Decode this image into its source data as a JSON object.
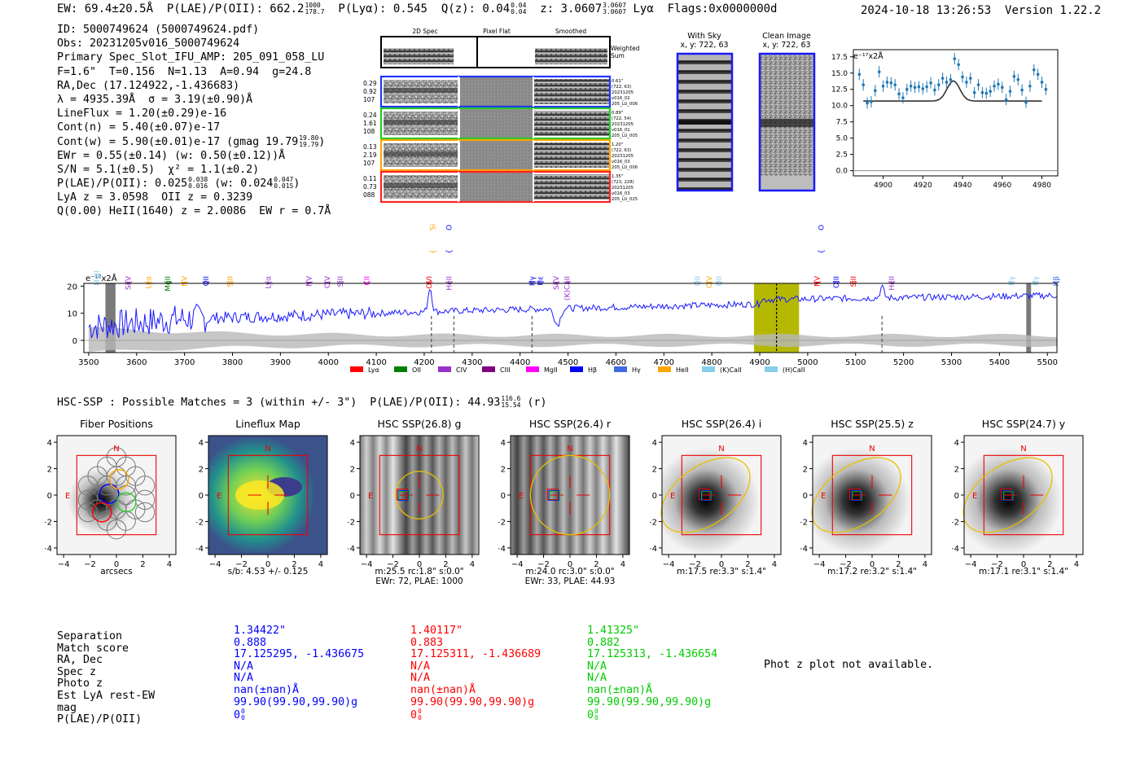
{
  "header": {
    "ew": "EW: 69.4±20.5Å",
    "plae_label": "P(LAE)/P(OII): 662.2",
    "plae_hi": "1000",
    "plae_lo": "178.7",
    "plya": "P(Lyα): 0.545",
    "qz_label": "Q(z): 0.04",
    "qz_hi": "0.04",
    "qz_lo": "0.04",
    "z_label": "z: 3.0607",
    "z_hi": "3.0607",
    "z_lo": "3.0607",
    "line": "Lyα",
    "flags": "Flags:0x0000000d",
    "datetime": "2024-10-18 13:26:53",
    "version": "Version 1.22.2"
  },
  "info": {
    "id": "ID: 5000749624 (5000749624.pdf)",
    "obs": "Obs: 20231205v016_5000749624",
    "primary": "Primary Spec_Slot_IFU_AMP: 205_091_058_LU",
    "fit": "F=1.6\"  T=0.156  N=1.13  A=0.94  g=24.8",
    "radec": "RA,Dec (17.124922,-1.436683)",
    "lambda": "λ = 4935.39Å  σ = 3.19(±0.90)Å",
    "lineflux": "LineFlux = 1.20(±0.29)e-16",
    "contn": "Cont(n) = 5.40(±0.07)e-17",
    "contw": "Cont(w) = 5.90(±0.01)e-17 (gmag 19.79",
    "contw_hi": "19.80",
    "contw_lo": "19.79",
    "contw_end": ")",
    "ewr": "EWr = 0.55(±0.14) (w: 0.50(±0.12))Å",
    "sn": "S/N = 5.1(±0.5)  χ² = 1.1(±0.2)",
    "plae": "P(LAE)/P(OII): 0.025",
    "plae_hi": "0.038",
    "plae_lo": "0.016",
    "plae_w": " (w: 0.024",
    "plae_w_hi": "0.047",
    "plae_w_lo": "0.015",
    "plae_end": ")",
    "lyaz": "LyA z = 3.0598  OII z = 0.3239",
    "q": "Q(0.00) HeII(1640) z = 2.0086  EW r = 0.7Å"
  },
  "cutouts": {
    "col_titles": [
      "2D Spec",
      "Pixel Flat",
      "Smoothed"
    ],
    "weighted_sum": "Weighted Sum",
    "rows": [
      {
        "left": [
          "0.29",
          "0.92",
          "107"
        ],
        "right": [
          "0.61\"",
          "(722, 63)",
          "20231205",
          "v016_02",
          "205_LU_006"
        ],
        "color": "#2233ff"
      },
      {
        "left": [
          "0.24",
          "1.61",
          "108"
        ],
        "right": [
          "0.89\"",
          "(722, 54)",
          "20231205",
          "v016_01",
          "205_LU_005"
        ],
        "color": "#22cc22"
      },
      {
        "left": [
          "0.13",
          "2.19",
          "107"
        ],
        "right": [
          "1.20\"",
          "(722, 63)",
          "20231205",
          "v016_03",
          "205_LU_006"
        ],
        "color": "#ffa500"
      },
      {
        "left": [
          "0.11",
          "0.73",
          "088"
        ],
        "right": [
          "1.35\"",
          "(723, 228)",
          "20231205",
          "v016_03",
          "205_LU_025"
        ],
        "color": "#ff2222"
      }
    ],
    "with_sky": "With Sky",
    "with_sky_xy": "x, y: 722, 63",
    "clean": "Clean Image",
    "clean_xy": "x, y: 722, 63"
  },
  "zoom_plot": {
    "unit": "e⁻¹⁷x2Å",
    "yticks": [
      "17.5",
      "15.0",
      "12.5",
      "10.0",
      "7.5",
      "5.0",
      "2.5",
      "0.0"
    ],
    "xticks": [
      "4900",
      "4920",
      "4940",
      "4960",
      "4980"
    ],
    "x": [
      4888,
      4890,
      4892,
      4894,
      4896,
      4898,
      4900,
      4902,
      4904,
      4906,
      4908,
      4910,
      4912,
      4914,
      4916,
      4918,
      4920,
      4922,
      4924,
      4926,
      4928,
      4930,
      4932,
      4934,
      4936,
      4938,
      4940,
      4942,
      4944,
      4946,
      4948,
      4950,
      4952,
      4954,
      4956,
      4958,
      4960,
      4962,
      4964,
      4966,
      4968,
      4970,
      4972,
      4974,
      4976,
      4978,
      4980,
      4982
    ],
    "y": [
      14.8,
      13.2,
      10.4,
      10.6,
      12.3,
      15.2,
      13.0,
      13.6,
      13.5,
      13.2,
      11.8,
      11.2,
      12.5,
      13.0,
      12.8,
      12.9,
      12.6,
      12.9,
      13.5,
      12.4,
      13.2,
      14.2,
      13.6,
      14.0,
      17.2,
      16.3,
      14.4,
      13.6,
      14.2,
      12.0,
      13.2,
      12.0,
      11.9,
      12.2,
      13.0,
      13.3,
      12.8,
      10.9,
      12.2,
      14.5,
      14.0,
      12.4,
      10.5,
      13.0,
      15.5,
      14.8,
      13.6,
      12.5
    ],
    "model_base": 10.7,
    "model_peak": 13.8,
    "model_center": 4935.4
  },
  "spectrum": {
    "unit": "e⁻¹⁷x2Å",
    "yticks": [
      "20",
      "10",
      "0"
    ],
    "xticks": [
      "3500",
      "3600",
      "3700",
      "3800",
      "3900",
      "4000",
      "4100",
      "4200",
      "4300",
      "4400",
      "4500",
      "4600",
      "4700",
      "4800",
      "4900",
      "5000",
      "5100",
      "5200",
      "5300",
      "5400",
      "5500"
    ],
    "lines": [
      {
        "label": "MgII",
        "color": "#87ceeb",
        "x": 3517,
        "row": 0
      },
      {
        "label": "SiIV",
        "color": "#9932cc",
        "x": 3583,
        "row": 1
      },
      {
        "label": "Lyα",
        "color": "#ffa500",
        "x": 3625,
        "row": 1
      },
      {
        "label": "MgII",
        "color": "#008000",
        "x": 3665,
        "row": 1
      },
      {
        "label": "NV",
        "color": "#ffa500",
        "x": 3700,
        "row": 1
      },
      {
        "label": "OII",
        "color": "#0000ff",
        "x": 3745,
        "row": 1
      },
      {
        "label": "SiII",
        "color": "#ffa500",
        "x": 3795,
        "row": 1
      },
      {
        "label": "Lyα",
        "color": "#9932cc",
        "x": 3875,
        "row": 1
      },
      {
        "label": "NV",
        "color": "#9932cc",
        "x": 3960,
        "row": 1
      },
      {
        "label": "CIV",
        "color": "#9932cc",
        "x": 3998,
        "row": 1
      },
      {
        "label": "SiII",
        "color": "#9932cc",
        "x": 4025,
        "row": 1
      },
      {
        "label": "CII",
        "color": "#ff00ff",
        "x": 4080,
        "row": 1
      },
      {
        "label": "SiIV",
        "color": "#ffa500",
        "x": 4218,
        "row": 2
      },
      {
        "label": "OII",
        "color": "#0000ff",
        "x": 4252,
        "row": 2
      },
      {
        "label": "OVI",
        "color": "#ff0000",
        "x": 4210,
        "row": 1
      },
      {
        "label": "HeII",
        "color": "#9932cc",
        "x": 4252,
        "row": 1
      },
      {
        "label": "Hγ",
        "color": "#0000ff",
        "x": 4425,
        "row": 1
      },
      {
        "label": "Hε",
        "color": "#0000ff",
        "x": 4442,
        "row": 1
      },
      {
        "label": "SiIV",
        "color": "#9932cc",
        "x": 4475,
        "row": 1
      },
      {
        "label": "(K)CaII",
        "color": "#9932cc",
        "x": 4498,
        "row": 1
      },
      {
        "label": "OII",
        "color": "#87ceeb",
        "x": 4770,
        "row": 1
      },
      {
        "label": "CIV",
        "color": "#ffa500",
        "x": 4795,
        "row": 1
      },
      {
        "label": "OII",
        "color": "#87ceeb",
        "x": 4815,
        "row": 1
      },
      {
        "label": "OIII",
        "color": "#0000ff",
        "x": 5028,
        "row": 2
      },
      {
        "label": "NV",
        "color": "#ff0000",
        "x": 5020,
        "row": 1
      },
      {
        "label": "OIII",
        "color": "#0000ff",
        "x": 5060,
        "row": 1
      },
      {
        "label": "SiII",
        "color": "#ff0000",
        "x": 5095,
        "row": 1
      },
      {
        "label": "HeII",
        "color": "#9932cc",
        "x": 5175,
        "row": 1
      },
      {
        "label": "Hγ",
        "color": "#87ceeb",
        "x": 5425,
        "row": 1
      },
      {
        "label": "Hγ",
        "color": "#87ceeb",
        "x": 5475,
        "row": 1
      },
      {
        "label": "Hβ",
        "color": "#4169e1",
        "x": 5518,
        "row": 1
      }
    ],
    "legend": [
      {
        "label": "Lyα",
        "color": "#ff0000"
      },
      {
        "label": "OII",
        "color": "#008000"
      },
      {
        "label": "CIV",
        "color": "#9932cc"
      },
      {
        "label": "CIII",
        "color": "#800080"
      },
      {
        "label": "MgII",
        "color": "#ff00ff"
      },
      {
        "label": "Hβ",
        "color": "#0000ff"
      },
      {
        "label": "Hγ",
        "color": "#4169e1"
      },
      {
        "label": "HeII",
        "color": "#ffa500"
      },
      {
        "label": "(K)CaII",
        "color": "#87ceeb"
      },
      {
        "label": "(H)CaII",
        "color": "#87ceeb"
      }
    ]
  },
  "hsc": {
    "title": "HSC-SSP : Possible Matches = 3 (within +/- 3\")  P(LAE)/P(OII): 44.93",
    "title_hi": "116.6",
    "title_lo": "15.54",
    "title_end": " (r)",
    "axis_ticks": [
      "4",
      "2",
      "0",
      "−2",
      "−4"
    ],
    "xticks": [
      "−4",
      "−2",
      "0",
      "2",
      "4"
    ],
    "north": "N",
    "east": "E",
    "panels": [
      {
        "title": "Fiber Positions",
        "cap1": "arcsecs",
        "cap2": ""
      },
      {
        "title": "Lineflux Map",
        "cap1": "s/b: 4.53 +/- 0.125",
        "cap2": ""
      },
      {
        "title": "HSC SSP(26.8) g",
        "cap1": "m:25.5 rc:1.8\"  s:0.0\"",
        "cap2": "EWr: 72, PLAE: 1000"
      },
      {
        "title": "HSC SSP(26.4) r",
        "cap1": "m:24.0 rc:3.0\"  s:0.0\"",
        "cap2": "EWr: 33, PLAE: 44.93"
      },
      {
        "title": "HSC SSP(26.4) i",
        "cap1": "m:17.5  re:3.3\"  s:1.4\"",
        "cap2": ""
      },
      {
        "title": "HSC SSP(25.5) z",
        "cap1": "m:17.2  re:3.2\"  s:1.4\"",
        "cap2": ""
      },
      {
        "title": "HSC SSP(24.7) y",
        "cap1": "m:17.1  re:3.1\"  s:1.4\"",
        "cap2": ""
      }
    ]
  },
  "matches": {
    "labels": [
      "Separation",
      "Match score",
      "RA, Dec",
      "Spec z",
      "Photo z",
      "Est LyA rest-EW",
      "mag",
      "P(LAE)/P(OII)"
    ],
    "columns": [
      {
        "color": "#0000ff",
        "values": [
          "1.34422\"",
          "0.888",
          "17.125295, -1.436675",
          "N/A",
          "N/A",
          "nan(±nan)Å",
          "99.90(99.90,99.90)g",
          "0"
        ]
      },
      {
        "color": "#ff0000",
        "values": [
          "1.40117\"",
          "0.883",
          "17.125311, -1.436689",
          "N/A",
          "N/A",
          "nan(±nan)Å",
          "99.90(99.90,99.90)g",
          "0"
        ]
      },
      {
        "color": "#00cc00",
        "values": [
          "1.41325\"",
          "0.882",
          "17.125313, -1.436654",
          "N/A",
          "N/A",
          "nan(±nan)Å",
          "99.90(99.90,99.90)g",
          "0"
        ]
      }
    ],
    "sub_hi": "0",
    "sub_lo": "0",
    "photz_note": "Phot z plot not available."
  }
}
